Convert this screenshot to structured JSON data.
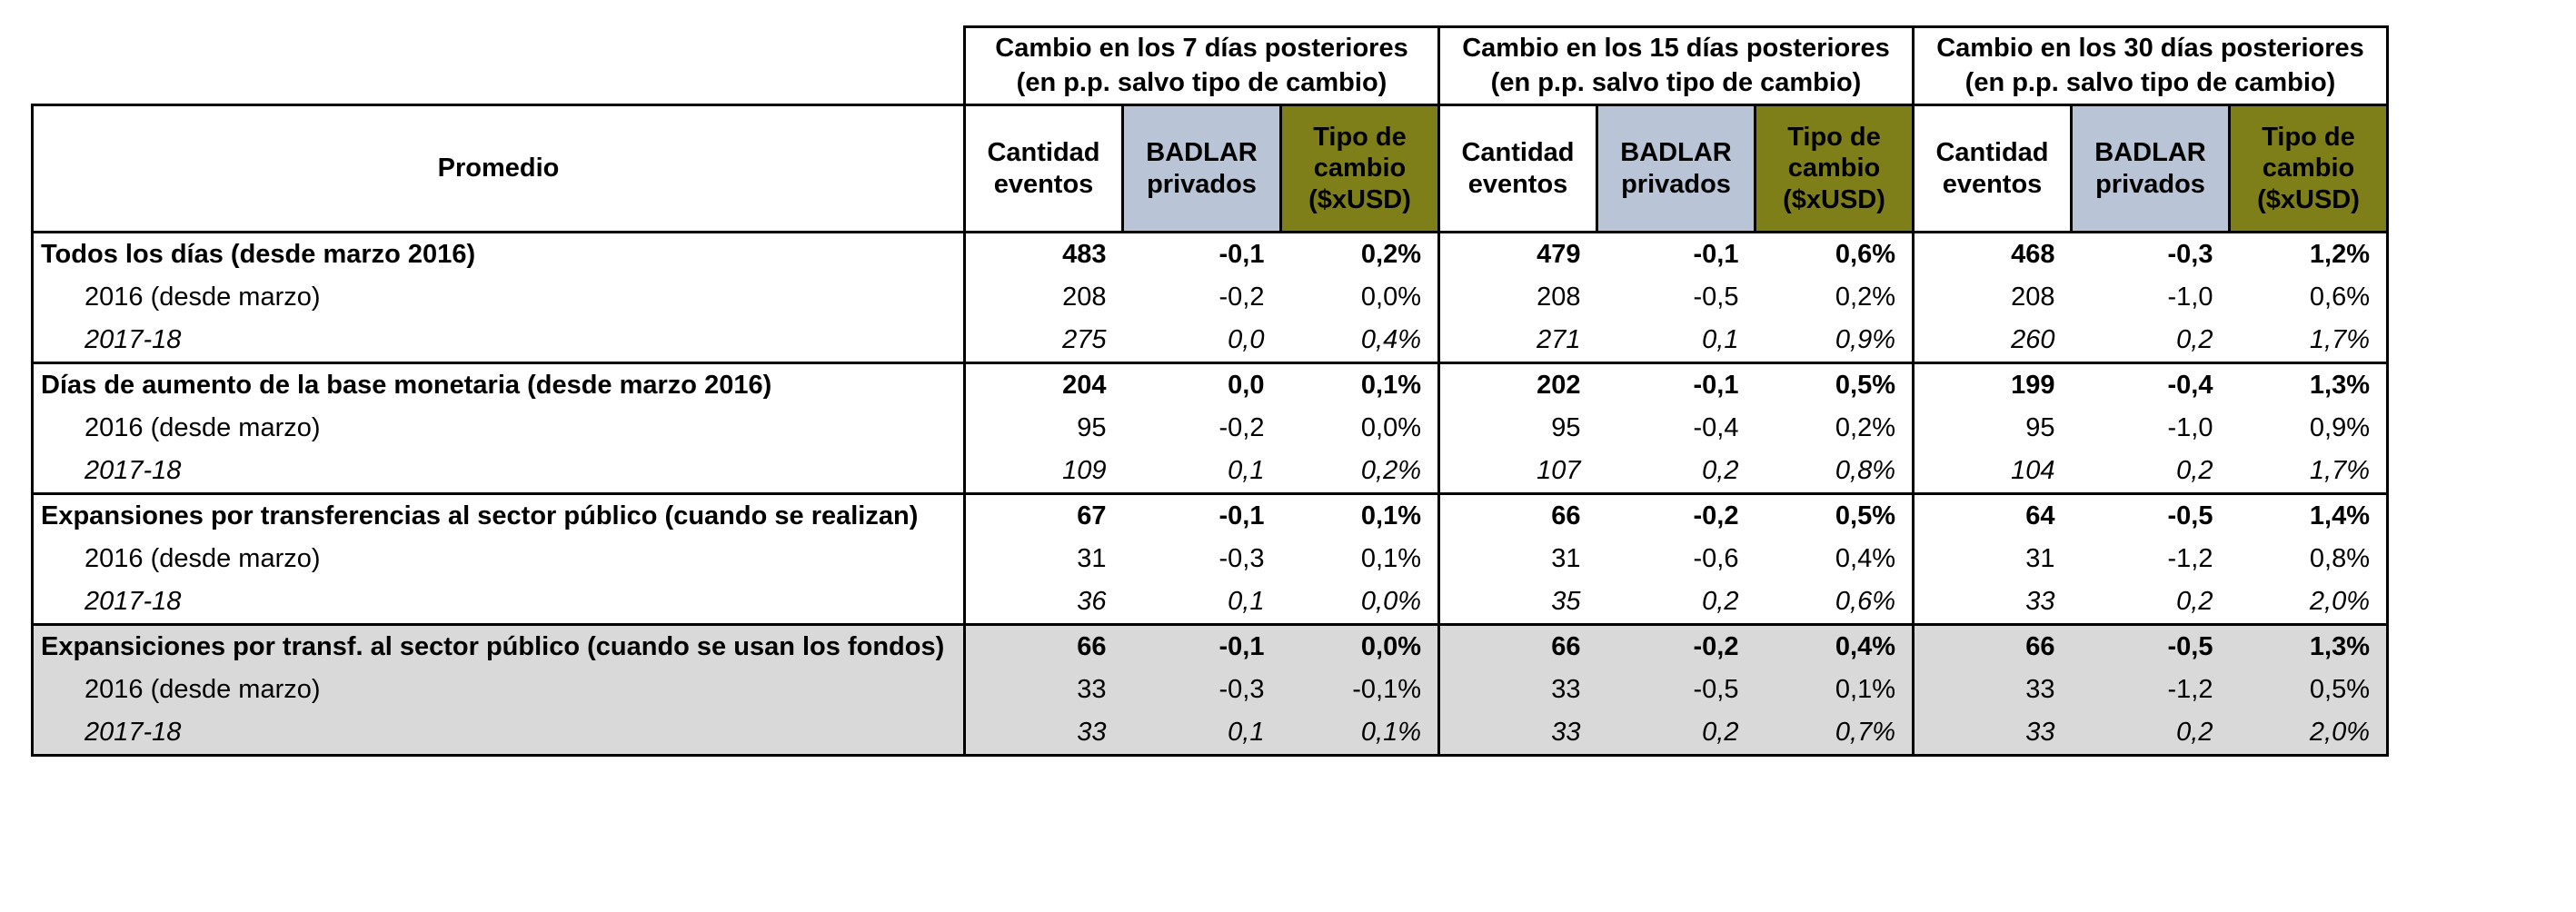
{
  "colors": {
    "badlar_header_bg": "#B9C5D6",
    "tipo_cambio_header_bg": "#7F7F19",
    "shaded_rows_bg": "#D9D9D9",
    "border": "#000000"
  },
  "chart_data": {
    "type": "table",
    "corner_label": "Promedio",
    "column_groups": [
      {
        "line1": "Cambio en los 7 días posteriores",
        "line2": "(en p.p. salvo tipo de cambio)"
      },
      {
        "line1": "Cambio en los 15 días posteriores",
        "line2": "(en p.p. salvo tipo de cambio)"
      },
      {
        "line1": "Cambio en los 30 días posteriores",
        "line2": "(en p.p. salvo tipo de cambio)"
      }
    ],
    "sub_columns": [
      "Cantidad eventos",
      "BADLAR privados",
      "Tipo de cambio ($xUSD)"
    ],
    "rows": [
      {
        "label": "Todos los días (desde marzo 2016)",
        "style": "bold",
        "indent": false,
        "shaded": false,
        "group_end": false,
        "values": [
          "483",
          "-0,1",
          "0,2%",
          "479",
          "-0,1",
          "0,6%",
          "468",
          "-0,3",
          "1,2%"
        ]
      },
      {
        "label": "2016 (desde marzo)",
        "style": "normal",
        "indent": true,
        "shaded": false,
        "group_end": false,
        "values": [
          "208",
          "-0,2",
          "0,0%",
          "208",
          "-0,5",
          "0,2%",
          "208",
          "-1,0",
          "0,6%"
        ]
      },
      {
        "label": "2017-18",
        "style": "italic",
        "indent": true,
        "shaded": false,
        "group_end": true,
        "values": [
          "275",
          "0,0",
          "0,4%",
          "271",
          "0,1",
          "0,9%",
          "260",
          "0,2",
          "1,7%"
        ]
      },
      {
        "label": "Días de aumento de la base monetaria (desde marzo 2016)",
        "style": "bold",
        "indent": false,
        "shaded": false,
        "group_end": false,
        "values": [
          "204",
          "0,0",
          "0,1%",
          "202",
          "-0,1",
          "0,5%",
          "199",
          "-0,4",
          "1,3%"
        ]
      },
      {
        "label": "2016 (desde marzo)",
        "style": "normal",
        "indent": true,
        "shaded": false,
        "group_end": false,
        "values": [
          "95",
          "-0,2",
          "0,0%",
          "95",
          "-0,4",
          "0,2%",
          "95",
          "-1,0",
          "0,9%"
        ]
      },
      {
        "label": "2017-18",
        "style": "italic",
        "indent": true,
        "shaded": false,
        "group_end": true,
        "values": [
          "109",
          "0,1",
          "0,2%",
          "107",
          "0,2",
          "0,8%",
          "104",
          "0,2",
          "1,7%"
        ]
      },
      {
        "label": "Expansiones por transferencias al sector público (cuando se realizan)",
        "style": "bold",
        "indent": false,
        "shaded": false,
        "group_end": false,
        "values": [
          "67",
          "-0,1",
          "0,1%",
          "66",
          "-0,2",
          "0,5%",
          "64",
          "-0,5",
          "1,4%"
        ]
      },
      {
        "label": "2016 (desde marzo)",
        "style": "normal",
        "indent": true,
        "shaded": false,
        "group_end": false,
        "values": [
          "31",
          "-0,3",
          "0,1%",
          "31",
          "-0,6",
          "0,4%",
          "31",
          "-1,2",
          "0,8%"
        ]
      },
      {
        "label": "2017-18",
        "style": "italic",
        "indent": true,
        "shaded": false,
        "group_end": true,
        "values": [
          "36",
          "0,1",
          "0,0%",
          "35",
          "0,2",
          "0,6%",
          "33",
          "0,2",
          "2,0%"
        ]
      },
      {
        "label": "Expansiciones por transf. al sector público (cuando se usan los fondos)",
        "style": "bold",
        "indent": false,
        "shaded": true,
        "group_end": false,
        "values": [
          "66",
          "-0,1",
          "0,0%",
          "66",
          "-0,2",
          "0,4%",
          "66",
          "-0,5",
          "1,3%"
        ]
      },
      {
        "label": "2016 (desde marzo)",
        "style": "normal",
        "indent": true,
        "shaded": true,
        "group_end": false,
        "values": [
          "33",
          "-0,3",
          "-0,1%",
          "33",
          "-0,5",
          "0,1%",
          "33",
          "-1,2",
          "0,5%"
        ]
      },
      {
        "label": "2017-18",
        "style": "italic",
        "indent": true,
        "shaded": true,
        "group_end": false,
        "values": [
          "33",
          "0,1",
          "0,1%",
          "33",
          "0,2",
          "0,7%",
          "33",
          "0,2",
          "2,0%"
        ]
      }
    ]
  }
}
